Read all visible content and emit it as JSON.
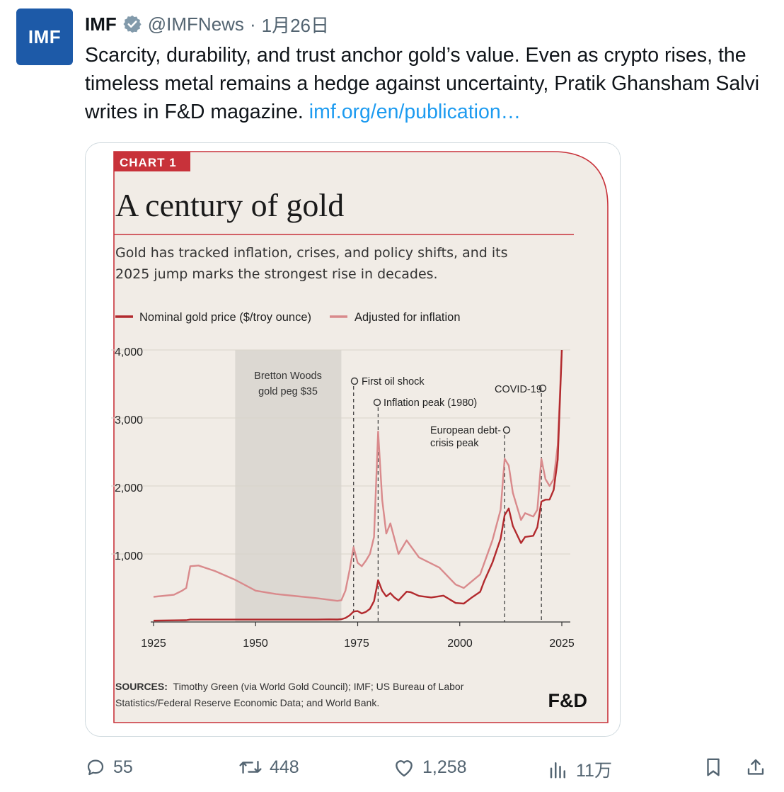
{
  "tweet": {
    "avatar_text": "IMF",
    "author_name": "IMF",
    "handle": "@IMFNews",
    "separator": "·",
    "date": "1月26日",
    "text": "Scarcity, durability, and trust anchor gold’s value. Even as crypto rises, the timeless metal remains a hedge against uncertainty, Pratik Ghansham Salvi writes in F&D magazine.",
    "link_text": "imf.org/en/publication…",
    "verified_icon": "verified-badge-icon"
  },
  "chart": {
    "badge": "CHART 1",
    "title": "A century of gold",
    "subtitle_line1": "Gold has tracked inflation, crises, and policy shifts, and its",
    "subtitle_line2": "2025 jump marks the strongest rise in decades.",
    "legend_nominal": "Nominal gold price ($/troy ounce)",
    "legend_adjusted": "Adjusted for inflation",
    "yticks": [
      "4,000",
      "3,000",
      "2,000",
      "1,000"
    ],
    "xticks": [
      "1925",
      "1950",
      "1975",
      "2000",
      "2025"
    ],
    "band_label_1": "Bretton Woods",
    "band_label_2": "gold peg $35",
    "annotation_oil": "First oil shock",
    "annotation_inflation": "Inflation peak (1980)",
    "annotation_euro_1": "European debt-",
    "annotation_euro_2": "crisis peak",
    "annotation_covid": "COVID-19",
    "sources_label": "SOURCES:",
    "sources_line1": "Timothy Green (via World Gold Council); IMF; US Bureau of Labor",
    "sources_line2": "Statistics/Federal Reserve Economic Data; and World Bank.",
    "brand": "F&D",
    "colors": {
      "nominal": "#b22a2e",
      "adjusted": "#d98a8c",
      "band": "#dcd8d2",
      "background": "#f1ece6",
      "frame": "#c8323a"
    }
  },
  "chart_data": {
    "type": "line",
    "title": "A century of gold",
    "ylim": [
      0,
      4000
    ],
    "xlim": [
      1925,
      2025
    ],
    "grid": true,
    "legend": "top-left",
    "shaded_region": {
      "label": "Bretton Woods gold peg $35",
      "x": [
        1945,
        1971
      ]
    },
    "series": [
      {
        "name": "Nominal gold price ($/troy ounce)",
        "x": [
          1925,
          1933,
          1934,
          1940,
          1945,
          1950,
          1955,
          1960,
          1965,
          1968,
          1970,
          1971,
          1972,
          1973,
          1974,
          1975,
          1976,
          1977,
          1978,
          1979,
          1980,
          1981,
          1982,
          1983,
          1984,
          1985,
          1987,
          1988,
          1990,
          1993,
          1996,
          1999,
          2001,
          2003,
          2005,
          2006,
          2008,
          2010,
          2011,
          2012,
          2013,
          2015,
          2016,
          2018,
          2019,
          2020,
          2021,
          2022,
          2023,
          2024,
          2025
        ],
        "y": [
          20,
          26,
          35,
          35,
          35,
          35,
          35,
          35,
          35,
          39,
          36,
          41,
          58,
          97,
          154,
          160,
          125,
          148,
          193,
          306,
          615,
          460,
          376,
          424,
          360,
          317,
          446,
          437,
          383,
          360,
          388,
          279,
          271,
          363,
          444,
          603,
          872,
          1225,
          1572,
          1669,
          1411,
          1160,
          1250,
          1268,
          1393,
          1770,
          1799,
          1800,
          1943,
          2386,
          4000
        ]
      },
      {
        "name": "Adjusted for inflation",
        "x": [
          1925,
          1930,
          1932,
          1933,
          1934,
          1936,
          1940,
          1945,
          1950,
          1955,
          1960,
          1965,
          1970,
          1971,
          1972,
          1973,
          1974,
          1975,
          1976,
          1977,
          1978,
          1979,
          1980,
          1981,
          1982,
          1983,
          1985,
          1987,
          1990,
          1995,
          1999,
          2001,
          2005,
          2008,
          2010,
          2011,
          2012,
          2013,
          2015,
          2016,
          2018,
          2019,
          2020,
          2021,
          2022,
          2023,
          2024,
          2025
        ],
        "y": [
          370,
          400,
          460,
          500,
          820,
          830,
          750,
          620,
          460,
          410,
          380,
          350,
          310,
          320,
          460,
          760,
          1100,
          870,
          820,
          900,
          1000,
          1250,
          2800,
          1800,
          1300,
          1450,
          1000,
          1200,
          950,
          800,
          550,
          500,
          700,
          1200,
          1650,
          2400,
          2300,
          1900,
          1500,
          1600,
          1550,
          1650,
          2400,
          2100,
          2000,
          2100,
          2600,
          4000
        ]
      }
    ],
    "annotations": [
      {
        "label": "First oil shock",
        "x": 1974
      },
      {
        "label": "Inflation peak (1980)",
        "x": 1980
      },
      {
        "label": "European debt-crisis peak",
        "x": 2011
      },
      {
        "label": "COVID-19",
        "x": 2020
      }
    ]
  },
  "actions": {
    "replies": "55",
    "retweets": "448",
    "likes": "1,258",
    "views": "11万"
  }
}
